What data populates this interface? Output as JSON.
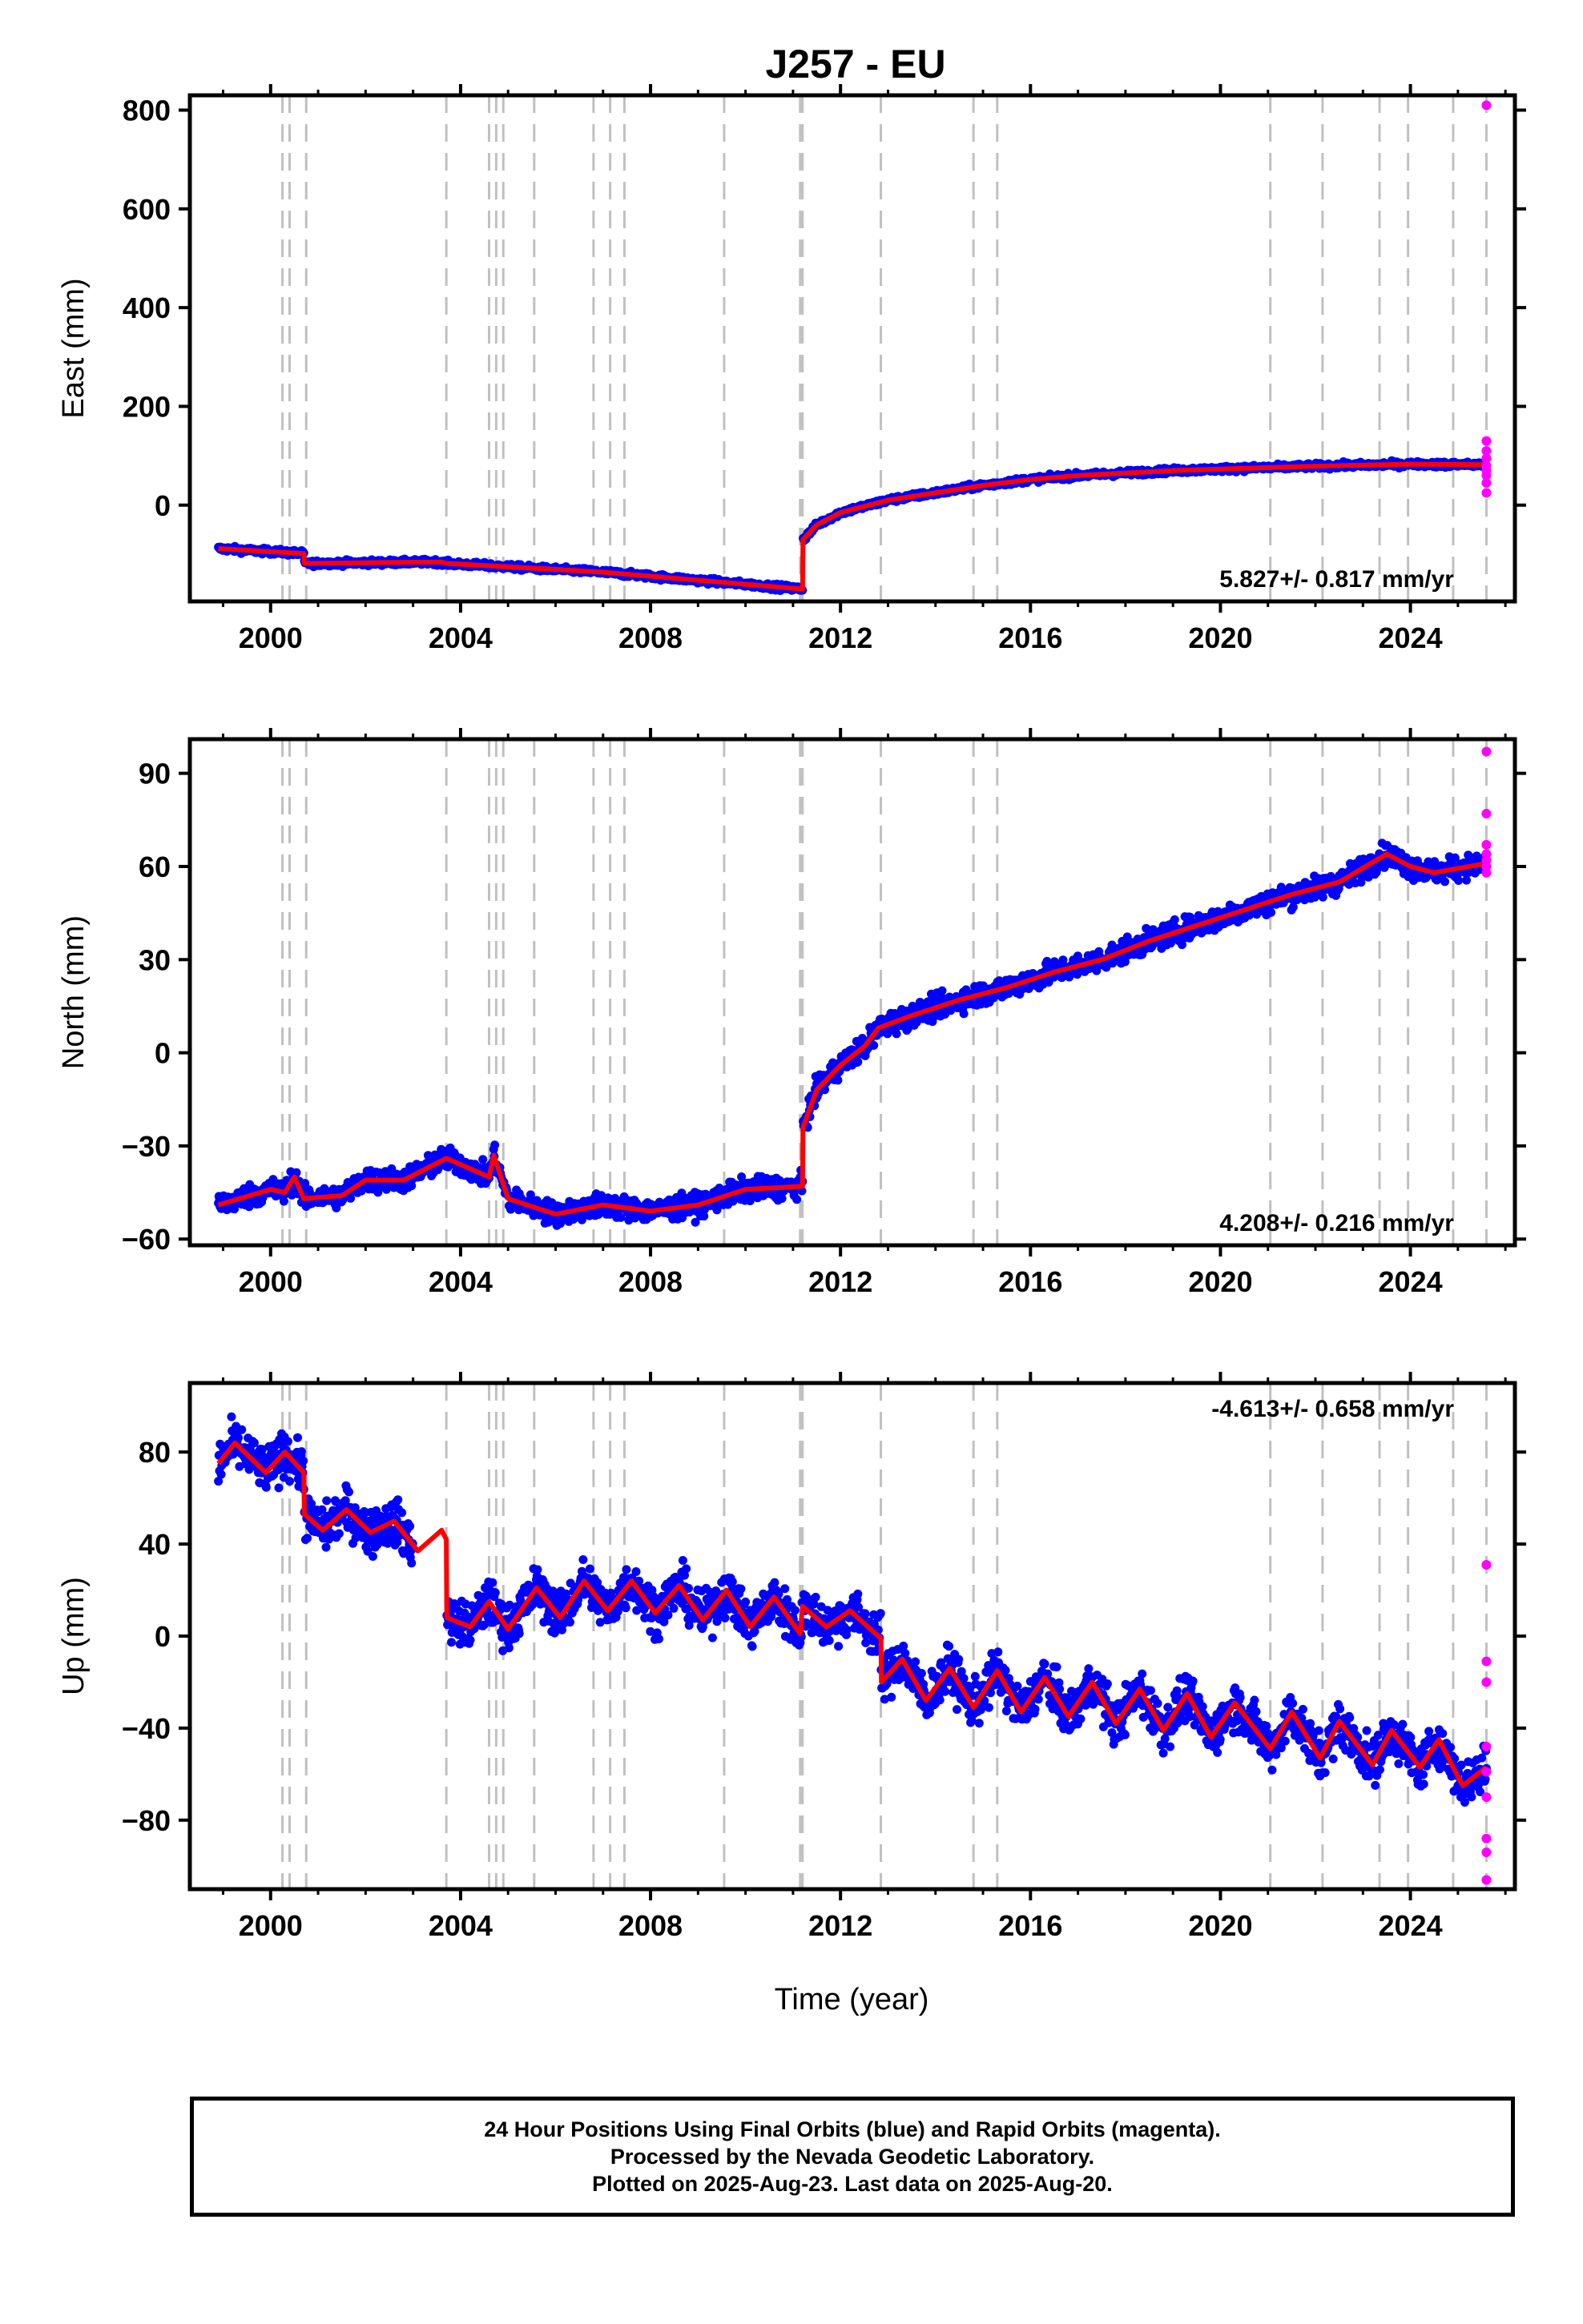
{
  "title": "J257 - EU",
  "xlabel": "Time (year)",
  "footer": {
    "line1": "24 Hour Positions Using Final Orbits (blue) and Rapid Orbits (magenta).",
    "line2": "Processed by the Nevada Geodetic Laboratory.",
    "line3": "Plotted on 2025-Aug-23. Last data on 2025-Aug-20."
  },
  "colors": {
    "final": "#0000ff",
    "rapid": "#ff00ff",
    "model": "#ff0000",
    "event_lines": "#c0c0c0"
  },
  "chart_data": {
    "type": "scatter",
    "title": "J257 - EU",
    "xlabel": "Time (year)",
    "xlim": [
      1998.3,
      2026.2
    ],
    "xticks": [
      2000,
      2004,
      2008,
      2012,
      2016,
      2020,
      2024
    ],
    "xtick_labels": [
      "2000",
      "2004",
      "2008",
      "2012",
      "2016",
      "2020",
      "2024"
    ],
    "event_lines": [
      2000.25,
      2000.4,
      2000.75,
      2003.7,
      2004.6,
      2004.75,
      2004.9,
      2005.55,
      2006.8,
      2007.15,
      2007.45,
      2009.55,
      2011.15,
      2011.2,
      2012.85,
      2014.8,
      2015.3,
      2021.05,
      2022.15,
      2023.35,
      2023.95,
      2024.9,
      2025.6
    ],
    "panels": [
      {
        "name": "east",
        "ylabel": "East (mm)",
        "ylim": [
          -195,
          830
        ],
        "yticks": [
          0,
          200,
          400,
          600,
          800
        ],
        "ytick_labels": [
          "0",
          "200",
          "400",
          "600",
          "800"
        ],
        "rate_label": "5.827+/- 0.817 mm/yr",
        "rate_position": "bottom-right",
        "scatter_sigma": 4,
        "model": [
          [
            1998.9,
            -88
          ],
          [
            2000.7,
            -98
          ],
          [
            2000.71,
            -118
          ],
          [
            2003.6,
            -115
          ],
          [
            2003.7,
            -118
          ],
          [
            2006.9,
            -135
          ],
          [
            2011.2,
            -170
          ],
          [
            2011.21,
            -70
          ],
          [
            2011.5,
            -40
          ],
          [
            2012.0,
            -15
          ],
          [
            2013.0,
            10
          ],
          [
            2014.0,
            25
          ],
          [
            2015.0,
            40
          ],
          [
            2016.0,
            52
          ],
          [
            2017.0,
            60
          ],
          [
            2018.0,
            65
          ],
          [
            2019.0,
            70
          ],
          [
            2020.0,
            73
          ],
          [
            2021.0,
            76
          ],
          [
            2022.0,
            79
          ],
          [
            2023.0,
            81
          ],
          [
            2024.0,
            83
          ],
          [
            2025.6,
            82
          ]
        ],
        "rapid": [
          [
            2025.6,
            810
          ],
          [
            2025.6,
            130
          ],
          [
            2025.6,
            110
          ],
          [
            2025.6,
            95
          ],
          [
            2025.6,
            80
          ],
          [
            2025.6,
            70
          ],
          [
            2025.6,
            60
          ],
          [
            2025.6,
            45
          ],
          [
            2025.6,
            25
          ]
        ]
      },
      {
        "name": "north",
        "ylabel": "North (mm)",
        "ylim": [
          -62,
          101
        ],
        "yticks": [
          -60,
          -30,
          0,
          30,
          60,
          90
        ],
        "ytick_labels": [
          "−60",
          "−30",
          "0",
          "30",
          "60",
          "90"
        ],
        "rate_label": "4.208+/- 0.216 mm/yr",
        "rate_position": "bottom-right",
        "scatter_sigma": 2.6,
        "model": [
          [
            1998.9,
            -49
          ],
          [
            2000.0,
            -44
          ],
          [
            2000.3,
            -45
          ],
          [
            2000.5,
            -40
          ],
          [
            2000.7,
            -47
          ],
          [
            2001.5,
            -46
          ],
          [
            2002.0,
            -41
          ],
          [
            2002.8,
            -41
          ],
          [
            2003.7,
            -34
          ],
          [
            2004.6,
            -40
          ],
          [
            2004.7,
            -33
          ],
          [
            2005.0,
            -47
          ],
          [
            2006.0,
            -52
          ],
          [
            2007.0,
            -49
          ],
          [
            2008.0,
            -51
          ],
          [
            2009.0,
            -49
          ],
          [
            2010.0,
            -44
          ],
          [
            2011.2,
            -43
          ],
          [
            2011.21,
            -24
          ],
          [
            2011.5,
            -12
          ],
          [
            2012.0,
            -4
          ],
          [
            2012.5,
            2
          ],
          [
            2012.8,
            8
          ],
          [
            2013.5,
            12
          ],
          [
            2014.5,
            17
          ],
          [
            2015.5,
            21
          ],
          [
            2016.5,
            26
          ],
          [
            2017.5,
            30
          ],
          [
            2018.5,
            36
          ],
          [
            2019.5,
            41
          ],
          [
            2020.5,
            46
          ],
          [
            2021.5,
            51
          ],
          [
            2022.5,
            55
          ],
          [
            2023.5,
            64
          ],
          [
            2024.0,
            60
          ],
          [
            2024.5,
            58
          ],
          [
            2025.6,
            61
          ]
        ],
        "rapid": [
          [
            2025.6,
            97
          ],
          [
            2025.6,
            77
          ],
          [
            2025.6,
            67
          ],
          [
            2025.6,
            64
          ],
          [
            2025.6,
            62
          ],
          [
            2025.6,
            60
          ],
          [
            2025.6,
            58
          ]
        ]
      },
      {
        "name": "up",
        "ylabel": "Up (mm)",
        "ylim": [
          -110,
          110
        ],
        "yticks": [
          -80,
          -40,
          0,
          40,
          80
        ],
        "ytick_labels": [
          "−80",
          "−40",
          "0",
          "40",
          "80"
        ],
        "rate_label": "-4.613+/- 0.658 mm/yr",
        "rate_position": "top-right",
        "scatter_sigma": 7,
        "data_end": 2025.6,
        "gaps": [
          [
            2003.0,
            2003.7
          ]
        ],
        "model": [
          [
            1998.9,
            75
          ],
          [
            1999.25,
            84
          ],
          [
            1999.9,
            71
          ],
          [
            2000.3,
            80
          ],
          [
            2000.7,
            71
          ],
          [
            2000.71,
            53
          ],
          [
            2001.1,
            46
          ],
          [
            2001.6,
            55
          ],
          [
            2002.1,
            45
          ],
          [
            2002.6,
            50
          ],
          [
            2003.1,
            37
          ],
          [
            2003.6,
            46
          ],
          [
            2003.7,
            42
          ],
          [
            2003.71,
            8
          ],
          [
            2004.2,
            4
          ],
          [
            2004.6,
            15
          ],
          [
            2005.0,
            3
          ],
          [
            2005.6,
            21
          ],
          [
            2006.1,
            8
          ],
          [
            2006.6,
            24
          ],
          [
            2007.1,
            11
          ],
          [
            2007.6,
            24
          ],
          [
            2008.1,
            10
          ],
          [
            2008.6,
            22
          ],
          [
            2009.1,
            7
          ],
          [
            2009.6,
            20
          ],
          [
            2010.1,
            4
          ],
          [
            2010.6,
            17
          ],
          [
            2011.15,
            1
          ],
          [
            2011.2,
            13
          ],
          [
            2011.7,
            4
          ],
          [
            2012.2,
            11
          ],
          [
            2012.85,
            -1
          ],
          [
            2012.86,
            -20
          ],
          [
            2013.3,
            -10
          ],
          [
            2013.8,
            -28
          ],
          [
            2014.3,
            -14
          ],
          [
            2014.8,
            -31
          ],
          [
            2015.3,
            -15
          ],
          [
            2015.8,
            -33
          ],
          [
            2016.3,
            -18
          ],
          [
            2016.8,
            -35
          ],
          [
            2017.3,
            -20
          ],
          [
            2017.8,
            -38
          ],
          [
            2018.3,
            -23
          ],
          [
            2018.8,
            -41
          ],
          [
            2019.3,
            -25
          ],
          [
            2019.8,
            -44
          ],
          [
            2020.3,
            -29
          ],
          [
            2021.05,
            -49
          ],
          [
            2021.5,
            -33
          ],
          [
            2022.1,
            -53
          ],
          [
            2022.5,
            -37
          ],
          [
            2023.2,
            -56
          ],
          [
            2023.6,
            -41
          ],
          [
            2024.2,
            -57
          ],
          [
            2024.6,
            -45
          ],
          [
            2025.1,
            -65
          ],
          [
            2025.6,
            -57
          ]
        ],
        "rapid": [
          [
            2025.6,
            31
          ],
          [
            2025.6,
            -11
          ],
          [
            2025.6,
            -20
          ],
          [
            2025.6,
            -48
          ],
          [
            2025.6,
            -59
          ],
          [
            2025.6,
            -70
          ],
          [
            2025.6,
            -88
          ],
          [
            2025.6,
            -94
          ],
          [
            2025.6,
            -106
          ]
        ]
      }
    ]
  }
}
